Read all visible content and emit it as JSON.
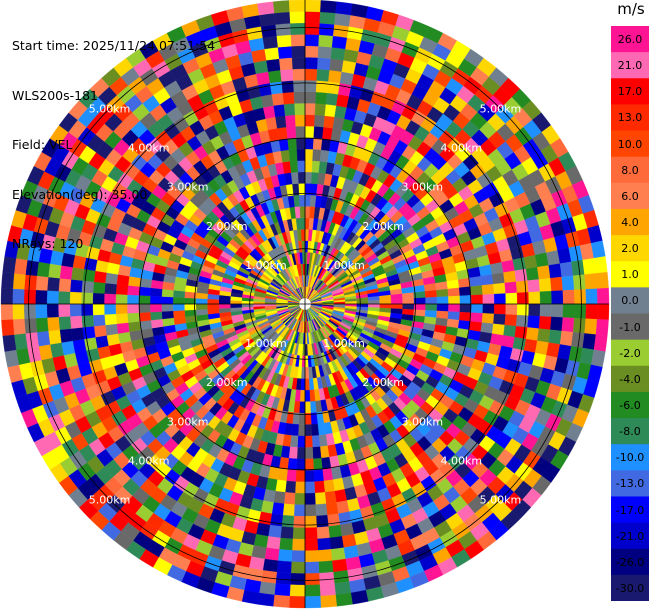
{
  "header": {
    "start_time": "Start time: 2025/11/24 07:51:54",
    "instrument": "WLS200s-181",
    "field": "Field: VEL",
    "elevation": "Elevation(deg): 35.00",
    "nrays": "NRays: 120"
  },
  "colorbar": {
    "unit": "m/s",
    "labels": [
      "26.0",
      "21.0",
      "17.0",
      "13.0",
      "10.0",
      "8.0",
      "6.0",
      "4.0",
      "2.0",
      "1.0",
      "0.0",
      "-1.0",
      "-2.0",
      "-4.0",
      "-6.0",
      "-8.0",
      "-10.0",
      "-13.0",
      "-17.0",
      "-21.0",
      "-26.0",
      "-30.0"
    ],
    "colors": [
      "#ff1493",
      "#ff69b4",
      "#ff0000",
      "#ff2a00",
      "#ff4500",
      "#ff6a3a",
      "#ff7f50",
      "#ffa500",
      "#ffd700",
      "#ffff00",
      "#708090",
      "#696969",
      "#9acd32",
      "#6b8e23",
      "#228b22",
      "#2e8b57",
      "#1e90ff",
      "#4169e1",
      "#0000ff",
      "#0000cd",
      "#000080",
      "#191970"
    ]
  },
  "chart_data": {
    "type": "heatmap",
    "projection": "polar PPI",
    "field": "VEL",
    "nrays": 120,
    "range_rings_km": [
      1.0,
      2.0,
      3.0,
      4.0,
      5.0
    ],
    "ring_labels": [
      "1.00km",
      "2.00km",
      "3.00km",
      "4.00km",
      "5.00km"
    ],
    "max_range_km": 5.5
  }
}
